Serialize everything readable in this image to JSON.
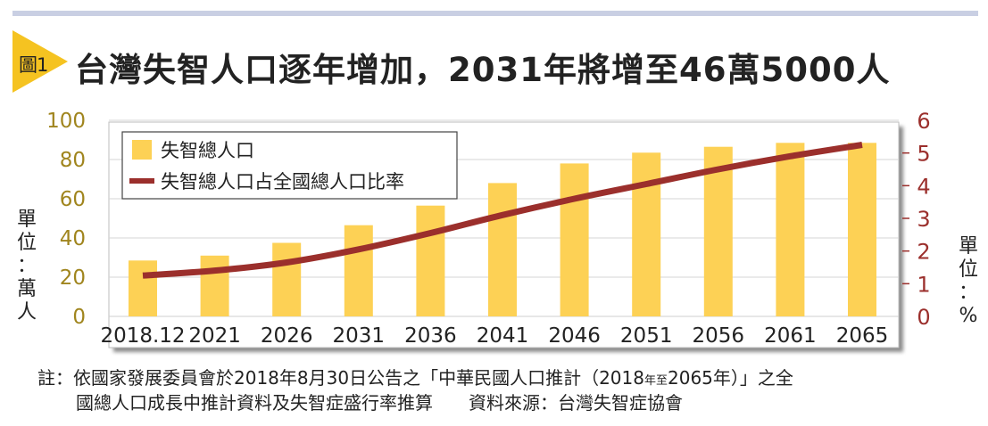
{
  "badge": {
    "label": "圖1"
  },
  "title": "台灣失智人口逐年增加，2031年將增至46萬5000人",
  "colors": {
    "bar": "#fdd155",
    "line": "#9b2f2c",
    "left_axis_text": "#a0851e",
    "right_axis_text": "#9b2f2c",
    "badge": "#f5c321",
    "topbar": "#c9cfe3"
  },
  "left_unit_label": [
    "單",
    "位",
    "：",
    "萬",
    "人"
  ],
  "right_unit_label": [
    "單",
    "位",
    "：",
    "%"
  ],
  "chart_data": {
    "type": "bar",
    "categories": [
      "2018.12",
      "2021",
      "2026",
      "2031",
      "2036",
      "2041",
      "2046",
      "2051",
      "2056",
      "2061",
      "2065"
    ],
    "ylim": [
      0,
      100
    ],
    "yticks": [
      "0",
      "20",
      "40",
      "60",
      "80",
      "100"
    ],
    "y2lim": [
      0,
      6
    ],
    "y2ticks": [
      "0",
      "1",
      "2",
      "3",
      "4",
      "5",
      "6"
    ],
    "grid": true,
    "legend_position": "top-left",
    "series": [
      {
        "name": "失智總人口",
        "type": "bar",
        "axis": "left",
        "values": [
          28.5,
          31,
          37.5,
          46.5,
          56.5,
          68,
          78,
          83.5,
          86.5,
          88.5,
          88.5
        ]
      },
      {
        "name": "失智總人口占全國總人口比率",
        "type": "line",
        "axis": "right",
        "values": [
          1.25,
          1.4,
          1.65,
          2.05,
          2.55,
          3.1,
          3.6,
          4.05,
          4.5,
          4.9,
          5.25
        ]
      }
    ]
  },
  "note": {
    "line1_a": "註：依國家發展委員會於2018年8月30日公告之「中華民國人口推計（2018",
    "line1_small": "年至",
    "line1_b": "2065年）」之全",
    "line2_a": "國總人口成長中推計資料及失智症盛行率推算",
    "line2_b": "資料來源：台灣失智症協會"
  }
}
